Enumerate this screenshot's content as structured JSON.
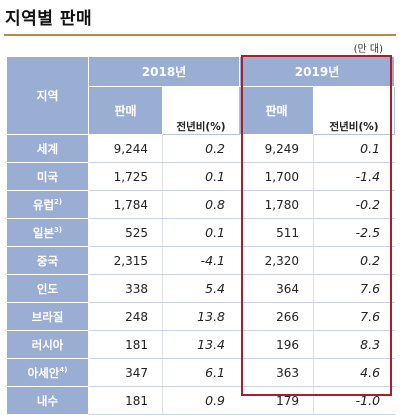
{
  "title": "지역별 판매",
  "unit": "(만 대)",
  "headers": {
    "region": "지역",
    "year1": "2018년",
    "year2": "2019년",
    "sales": "판매",
    "yoy": "전년비(%)"
  },
  "rows": [
    {
      "region": "세계",
      "note": "",
      "s2018": "9,244",
      "y2018": "0.2",
      "s2019": "9,249",
      "y2019": "0.1"
    },
    {
      "region": "미국",
      "note": "",
      "s2018": "1,725",
      "y2018": "0.1",
      "s2019": "1,700",
      "y2019": "-1.4"
    },
    {
      "region": "유럽",
      "note": "2)",
      "s2018": "1,784",
      "y2018": "0.8",
      "s2019": "1,780",
      "y2019": "-0.2"
    },
    {
      "region": "일본",
      "note": "3)",
      "s2018": "525",
      "y2018": "0.1",
      "s2019": "511",
      "y2019": "-2.5"
    },
    {
      "region": "중국",
      "note": "",
      "s2018": "2,315",
      "y2018": "-4.1",
      "s2019": "2,320",
      "y2019": "0.2"
    },
    {
      "region": "인도",
      "note": "",
      "s2018": "338",
      "y2018": "5.4",
      "s2019": "364",
      "y2019": "7.6"
    },
    {
      "region": "브라질",
      "note": "",
      "s2018": "248",
      "y2018": "13.8",
      "s2019": "266",
      "y2019": "7.6"
    },
    {
      "region": "러시아",
      "note": "",
      "s2018": "181",
      "y2018": "13.4",
      "s2019": "196",
      "y2019": "8.3"
    },
    {
      "region": "아세안",
      "note": "4)",
      "s2018": "347",
      "y2018": "6.1",
      "s2019": "363",
      "y2019": "4.6"
    },
    {
      "region": "내수",
      "note": "",
      "s2018": "181",
      "y2018": "0.9",
      "s2019": "179",
      "y2019": "-1.0"
    }
  ],
  "colors": {
    "header_bg": "#9aaed3",
    "title_rule": "#c08a3e",
    "highlight_border": "#a7202c"
  }
}
